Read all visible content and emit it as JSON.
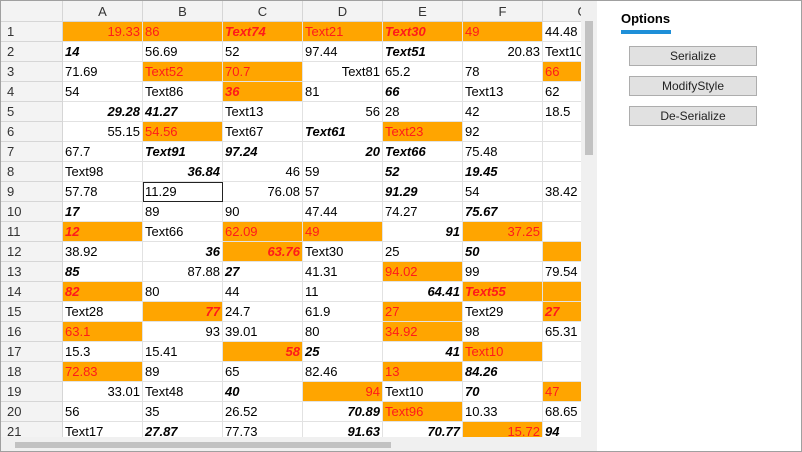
{
  "grid": {
    "columns": [
      "A",
      "B",
      "C",
      "D",
      "E",
      "F",
      "G"
    ],
    "rows": [
      {
        "header": "1",
        "cells": [
          "19.33",
          "86",
          "Text74",
          "Text21",
          "Text30",
          "49",
          "44.48"
        ]
      },
      {
        "header": "2",
        "cells": [
          "14",
          "56.69",
          "52",
          "97.44",
          "Text51",
          "20.83",
          "Text10"
        ]
      },
      {
        "header": "3",
        "cells": [
          "71.69",
          "Text52",
          "70.7",
          "Text81",
          "65.2",
          "78",
          "66"
        ]
      },
      {
        "header": "4",
        "cells": [
          "54",
          "Text86",
          "36",
          "81",
          "66",
          "Text13",
          "62"
        ]
      },
      {
        "header": "5",
        "cells": [
          "29.28",
          "41.27",
          "Text13",
          "56",
          "28",
          "42",
          "18.5"
        ]
      },
      {
        "header": "6",
        "cells": [
          "55.15",
          "54.56",
          "Text67",
          "Text61",
          "Text23",
          "92",
          null
        ]
      },
      {
        "header": "7",
        "cells": [
          "67.7",
          "Text91",
          "97.24",
          "20",
          "Text66",
          "75.48",
          null
        ]
      },
      {
        "header": "8",
        "cells": [
          "Text98",
          "36.84",
          "46",
          "59",
          "52",
          "19.45",
          null
        ]
      },
      {
        "header": "9",
        "cells": [
          "57.78",
          "11.29",
          "76.08",
          "57",
          "91.29",
          "54",
          "38.42"
        ]
      },
      {
        "header": "10",
        "cells": [
          "17",
          "89",
          "90",
          "47.44",
          "74.27",
          "75.67",
          null
        ]
      },
      {
        "header": "11",
        "cells": [
          "12",
          "Text66",
          "62.09",
          "49",
          "91",
          "37.25",
          null
        ]
      },
      {
        "header": "12",
        "cells": [
          "38.92",
          "36",
          "63.76",
          "Text30",
          "25",
          "50",
          null
        ]
      },
      {
        "header": "13",
        "cells": [
          "85",
          "87.88",
          "27",
          "41.31",
          "94.02",
          "99",
          "79.54"
        ]
      },
      {
        "header": "14",
        "cells": [
          "82",
          "80",
          "44",
          "11",
          "64.41",
          "Text55",
          null
        ]
      },
      {
        "header": "15",
        "cells": [
          "Text28",
          "77",
          "24.7",
          "61.9",
          "27",
          "Text29",
          "27"
        ]
      },
      {
        "header": "16",
        "cells": [
          "63.1",
          "93",
          "39.01",
          "80",
          "34.92",
          "98",
          "65.31"
        ]
      },
      {
        "header": "17",
        "cells": [
          "15.3",
          "15.41",
          "58",
          "25",
          "41",
          "Text10",
          null
        ]
      },
      {
        "header": "18",
        "cells": [
          "72.83",
          "89",
          "65",
          "82.46",
          "13",
          "84.26",
          null
        ]
      },
      {
        "header": "19",
        "cells": [
          "33.01",
          "Text48",
          "40",
          "94",
          "Text10",
          "70",
          "47"
        ]
      },
      {
        "header": "20",
        "cells": [
          "56",
          "35",
          "26.52",
          "70.89",
          "Text96",
          "10.33",
          "68.65"
        ]
      },
      {
        "header": "21",
        "cells": [
          "Text17",
          "27.87",
          "77.73",
          "91.63",
          "70.77",
          "15.72",
          "94"
        ]
      }
    ]
  },
  "options": {
    "title": "Options",
    "buttons": [
      "Serialize",
      "ModifyStyle",
      "De-Serialize"
    ]
  }
}
